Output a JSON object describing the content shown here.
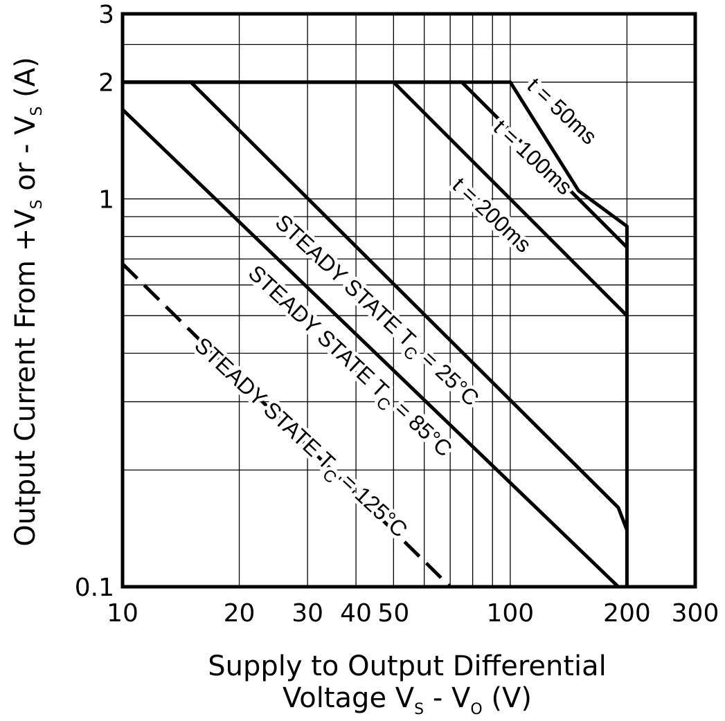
{
  "chart_data": {
    "type": "line",
    "title": "",
    "xlabel": "Supply to Output Differential",
    "xlabel_line2": {
      "prefix": "Voltage V",
      "sub1": "S",
      "mid": " - V",
      "sub2": "O",
      "suffix": " (V)"
    },
    "ylabel": {
      "p1": "Output Current From +V",
      "s1": "S",
      "p2": " or - V",
      "s2": "S",
      "p3": " (A)"
    },
    "xscale": "log",
    "yscale": "log",
    "xlim": [
      10,
      300
    ],
    "ylim": [
      0.1,
      3
    ],
    "grid": true,
    "x_ticks": [
      10,
      20,
      30,
      40,
      50,
      100,
      200,
      300
    ],
    "x_tick_labels": [
      "10",
      "20",
      "30",
      "40",
      "50",
      "100",
      "200",
      "300"
    ],
    "y_ticks": [
      0.1,
      1,
      2,
      3
    ],
    "y_tick_labels": [
      "0.1",
      "1",
      "2",
      "3"
    ],
    "x_gridlines": [
      20,
      30,
      40,
      50,
      60,
      70,
      80,
      90,
      100,
      200
    ],
    "y_gridlines": [
      0.2,
      0.3,
      0.4,
      0.5,
      0.6,
      0.7,
      0.8,
      0.9,
      1,
      2,
      2.5
    ],
    "series": [
      {
        "label": "t = 50ms",
        "label_main": "t = 50ms",
        "label_sub": "",
        "label_tail": "",
        "dash": false,
        "points": [
          [
            10,
            2
          ],
          [
            100,
            2
          ],
          [
            150,
            1.05
          ],
          [
            200,
            0.85
          ],
          [
            200,
            0.1
          ]
        ]
      },
      {
        "label": "t = 100ms",
        "label_main": "t = 100ms",
        "label_sub": "",
        "label_tail": "",
        "dash": false,
        "points": [
          [
            10,
            2
          ],
          [
            75,
            2
          ],
          [
            200,
            0.75
          ]
        ]
      },
      {
        "label": "t = 200ms",
        "label_main": "t = 200ms",
        "label_sub": "",
        "label_tail": "",
        "dash": false,
        "points": [
          [
            50,
            2
          ],
          [
            200,
            0.5
          ]
        ]
      },
      {
        "label": "STEADY STATE TC = 25°C",
        "label_main": "STEADY STATE T",
        "label_sub": "C",
        "label_tail": " = 25°C",
        "dash": false,
        "points": [
          [
            10,
            2
          ],
          [
            15,
            2
          ],
          [
            190,
            0.16
          ],
          [
            200,
            0.14
          ]
        ]
      },
      {
        "label": "STEADY STATE TC = 85°C",
        "label_main": "STEADY STATE T",
        "label_sub": "C",
        "label_tail": " = 85°C",
        "dash": false,
        "points": [
          [
            10,
            1.7
          ],
          [
            190,
            0.1
          ]
        ]
      },
      {
        "label": "STEADY STATE TC = 125°C",
        "label_main": "STEADY STATE T",
        "label_sub": "C",
        "label_tail": " = 125°C",
        "dash": true,
        "points": [
          [
            10,
            0.68
          ],
          [
            70,
            0.1
          ]
        ]
      }
    ]
  }
}
